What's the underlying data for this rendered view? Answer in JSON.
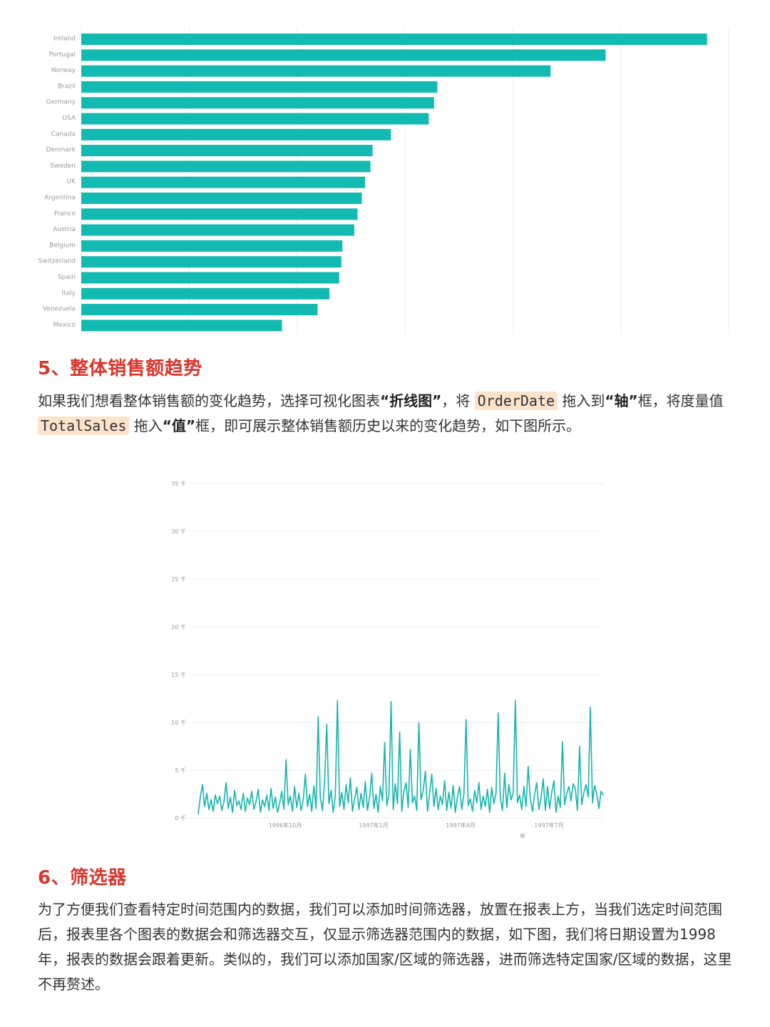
{
  "colors": {
    "bar": "#12bab2",
    "line": "#14b4ac",
    "heading": "#d8362c",
    "code_bg": "#fde2cc",
    "grid": "#eeeeee",
    "axis_text": "#999999"
  },
  "chart_data": [
    {
      "type": "bar",
      "orientation": "horizontal",
      "categories": [
        "Ireland",
        "Portugal",
        "Norway",
        "Brazil",
        "Germany",
        "USA",
        "Canada",
        "Denmark",
        "Sweden",
        "UK",
        "Argentina",
        "France",
        "Austria",
        "Belgium",
        "Switzerland",
        "Spain",
        "Italy",
        "Venezuela",
        "Mexico"
      ],
      "values": [
        58,
        48.6,
        43.5,
        33,
        32.7,
        32.2,
        28.7,
        27,
        26.8,
        26.3,
        26,
        25.6,
        25.3,
        24.2,
        24.1,
        23.9,
        23,
        21.9,
        18.6
      ],
      "title": "",
      "xlabel": "",
      "ylabel": "",
      "xlim": [
        0,
        60
      ],
      "grid": true,
      "color": "#12bab2"
    },
    {
      "type": "line",
      "title": "",
      "xlabel": "年",
      "ylabel": "",
      "ylim": [
        0,
        35000
      ],
      "yticks": [
        "0 千",
        "5 千",
        "10 千",
        "15 千",
        "20 千",
        "25 千",
        "30 千",
        "35 千"
      ],
      "xticks": [
        "1996年10月",
        "1997年1月",
        "1997年4月",
        "1997年7月"
      ],
      "grid": true,
      "series": [
        {
          "values": [
            400,
            2200,
            3500,
            1200,
            2600,
            900,
            1900,
            700,
            2400,
            1500,
            2300,
            800,
            1700,
            3700,
            1000,
            2200,
            600,
            2900,
            1300,
            1800,
            900,
            2600,
            700,
            2100,
            1400,
            2800,
            900,
            1700,
            3000,
            600,
            1900,
            1200,
            2400,
            800,
            3100,
            1000,
            2200,
            600,
            1500,
            2800,
            900,
            6100,
            1400,
            2300,
            700,
            3300,
            1100,
            2600,
            800,
            1900,
            4600,
            1200,
            2500,
            700,
            3400,
            1000,
            10600,
            2100,
            800,
            3900,
            9800,
            1500,
            2900,
            600,
            2300,
            12300,
            1200,
            2700,
            900,
            3500,
            1600,
            4200,
            700,
            2000,
            3200,
            900,
            2600,
            1100,
            3800,
            800,
            2200,
            4700,
            1000,
            2500,
            600,
            3300,
            1800,
            7900,
            1300,
            2400,
            12200,
            900,
            3600,
            1500,
            9000,
            700,
            2800,
            3700,
            1100,
            7200,
            1600,
            2300,
            800,
            10000,
            1900,
            2900,
            4900,
            700,
            2600,
            4600,
            1200,
            3100,
            900,
            2300,
            1400,
            3900,
            800,
            2700,
            1000,
            3400,
            600,
            2200,
            3300,
            900,
            2500,
            10300,
            1300,
            2000,
            700,
            2900,
            1600,
            3700,
            900,
            2300,
            1200,
            3000,
            600,
            3200,
            1500,
            2600,
            11000,
            2100,
            800,
            4700,
            1100,
            3500,
            1900,
            2600,
            12300,
            1600,
            2400,
            900,
            3300,
            1200,
            5400,
            2000,
            700,
            2500,
            3700,
            900,
            2100,
            4100,
            800,
            3300,
            1000,
            2700,
            3900,
            600,
            2300,
            1100,
            8000,
            1400,
            2600,
            3300,
            1800,
            3600,
            3100,
            800,
            7500,
            1400,
            2700,
            3500,
            2200,
            11600,
            1600,
            3400,
            2500,
            1000,
            2800,
            2400
          ]
        }
      ]
    }
  ],
  "sections": [
    {
      "title": "5、整体销售额趋势",
      "paragraph": {
        "t1": "如果我们想看整体销售额的变化趋势，选择可视化图表",
        "b1": "“折线图”",
        "t2": "，将",
        "c1": "OrderDate",
        "t3": "拖入到",
        "b2": "“轴”",
        "t4": "框，将度量值",
        "c2": "TotalSales",
        "t5": "拖入",
        "b3": "“值”",
        "t6": "框，即可展示整体销售额历史以来的变化趋势，如下图所示。"
      }
    },
    {
      "title": "6、筛选器",
      "paragraph": "为了方便我们查看特定时间范围内的数据，我们可以添加时间筛选器，放置在报表上方，当我们选定时间范围后，报表里各个图表的数据会和筛选器交互，仅显示筛选器范围内的数据，如下图，我们将日期设置为1998年，报表的数据会跟着更新。类似的，我们可以添加国家/区域的筛选器，进而筛选特定国家/区域的数据，这里不再赘述。"
    }
  ]
}
